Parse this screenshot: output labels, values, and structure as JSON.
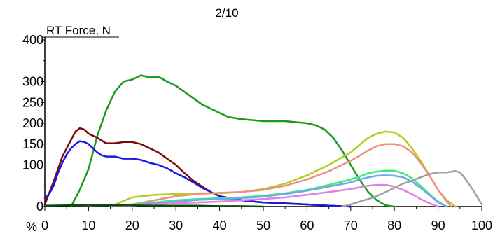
{
  "chart_data": {
    "type": "line",
    "title": "2/10",
    "ylabel": "RT Force, N",
    "xlabel": "%",
    "xlim": [
      0,
      100
    ],
    "ylim": [
      0,
      400
    ],
    "x_ticks": [
      0,
      10,
      20,
      30,
      40,
      50,
      60,
      70,
      80,
      90,
      100
    ],
    "x_tick_labels": [
      "0",
      "10",
      "20",
      "30",
      "40",
      "50",
      "60",
      "70",
      "80",
      "90",
      "100"
    ],
    "y_ticks": [
      0,
      100,
      150,
      200,
      250,
      300,
      400
    ],
    "y_tick_labels": [
      "0",
      "100",
      "150",
      "200",
      "250",
      "300",
      "400"
    ],
    "grid": false,
    "series": [
      {
        "color": "#1a9a1a",
        "x": [
          6,
          8,
          10,
          12,
          14,
          16,
          18,
          20,
          22,
          24,
          26,
          28,
          30,
          32,
          34,
          36,
          38,
          40,
          42,
          45,
          50,
          55,
          60,
          62,
          64,
          66,
          68,
          70,
          72,
          74,
          76,
          78,
          80
        ],
        "values": [
          0,
          40,
          90,
          170,
          230,
          275,
          300,
          305,
          315,
          310,
          312,
          300,
          290,
          275,
          260,
          245,
          235,
          225,
          215,
          210,
          205,
          205,
          200,
          195,
          185,
          165,
          135,
          100,
          65,
          35,
          15,
          3,
          0
        ]
      },
      {
        "color": "#7a0a0a",
        "x": [
          0,
          2,
          4,
          6,
          7,
          8,
          9,
          10,
          12,
          14,
          16,
          18,
          20,
          22,
          24,
          26,
          28,
          30,
          32,
          34,
          36,
          38,
          40,
          42,
          45,
          50,
          55,
          60,
          65,
          70
        ],
        "values": [
          5,
          60,
          120,
          160,
          180,
          188,
          185,
          175,
          165,
          152,
          152,
          155,
          155,
          150,
          140,
          130,
          115,
          100,
          80,
          62,
          48,
          35,
          25,
          20,
          15,
          10,
          8,
          5,
          2,
          0
        ]
      },
      {
        "color": "#1a1ae0",
        "x": [
          0,
          1,
          2,
          3,
          4,
          5,
          6,
          7,
          8,
          9,
          10,
          11,
          12,
          13,
          14,
          15,
          16,
          18,
          20,
          22,
          24,
          26,
          28,
          30,
          32,
          34,
          36,
          38,
          40,
          45,
          50,
          55,
          60,
          65,
          70
        ],
        "values": [
          20,
          30,
          50,
          80,
          105,
          125,
          140,
          150,
          157,
          155,
          150,
          140,
          130,
          123,
          120,
          120,
          120,
          115,
          115,
          112,
          105,
          100,
          92,
          80,
          70,
          58,
          45,
          35,
          25,
          15,
          10,
          7,
          5,
          2,
          0
        ]
      },
      {
        "color": "#b3cc22",
        "x": [
          15,
          20,
          25,
          30,
          35,
          40,
          45,
          50,
          55,
          60,
          65,
          70,
          72,
          74,
          76,
          78,
          80,
          82,
          84,
          86,
          88,
          90,
          92,
          94
        ],
        "values": [
          0,
          22,
          28,
          30,
          32,
          32,
          35,
          42,
          55,
          75,
          100,
          130,
          148,
          165,
          175,
          180,
          178,
          165,
          140,
          110,
          75,
          40,
          15,
          0
        ]
      },
      {
        "color": "#f09080",
        "x": [
          15,
          20,
          25,
          30,
          35,
          40,
          45,
          50,
          55,
          60,
          65,
          70,
          72,
          74,
          76,
          78,
          80,
          82,
          84,
          86,
          88,
          90,
          92,
          93
        ],
        "values": [
          0,
          5,
          15,
          25,
          30,
          33,
          35,
          40,
          50,
          65,
          85,
          110,
          122,
          135,
          145,
          150,
          150,
          145,
          130,
          105,
          75,
          40,
          12,
          0
        ]
      },
      {
        "color": "#40e880",
        "x": [
          15,
          20,
          25,
          30,
          35,
          40,
          45,
          50,
          55,
          60,
          65,
          70,
          72,
          74,
          76,
          78,
          80,
          82,
          84,
          86,
          88,
          90,
          92
        ],
        "values": [
          0,
          5,
          10,
          15,
          18,
          20,
          22,
          26,
          32,
          40,
          52,
          65,
          72,
          80,
          84,
          86,
          86,
          80,
          68,
          50,
          30,
          12,
          0
        ]
      },
      {
        "color": "#70a8e8",
        "x": [
          15,
          20,
          25,
          30,
          35,
          40,
          45,
          50,
          55,
          60,
          65,
          70,
          72,
          74,
          76,
          78,
          80,
          82,
          84,
          86,
          88,
          90,
          92
        ],
        "values": [
          0,
          4,
          8,
          12,
          16,
          18,
          20,
          24,
          30,
          38,
          48,
          58,
          65,
          70,
          74,
          75,
          74,
          70,
          60,
          45,
          28,
          10,
          0
        ]
      },
      {
        "color": "#e080e0",
        "x": [
          15,
          20,
          25,
          30,
          35,
          40,
          45,
          50,
          55,
          60,
          65,
          70,
          72,
          74,
          76,
          78,
          80,
          82,
          84,
          86,
          88,
          90
        ],
        "values": [
          0,
          2,
          5,
          8,
          10,
          12,
          15,
          18,
          22,
          28,
          35,
          42,
          46,
          50,
          52,
          52,
          48,
          40,
          30,
          18,
          8,
          0
        ]
      },
      {
        "color": "#a0a0a0",
        "x": [
          68,
          70,
          72,
          74,
          76,
          78,
          80,
          82,
          84,
          86,
          88,
          90,
          92,
          94,
          95,
          96,
          98,
          100
        ],
        "values": [
          0,
          5,
          12,
          18,
          25,
          35,
          45,
          55,
          62,
          70,
          78,
          82,
          82,
          85,
          82,
          70,
          40,
          5
        ]
      },
      {
        "color": "#0a4a0a",
        "x": [
          0,
          5,
          10,
          15,
          20,
          25,
          30,
          35,
          40,
          45,
          50
        ],
        "values": [
          2,
          3,
          4,
          3,
          3,
          2,
          2,
          2,
          1,
          1,
          0
        ]
      }
    ]
  }
}
